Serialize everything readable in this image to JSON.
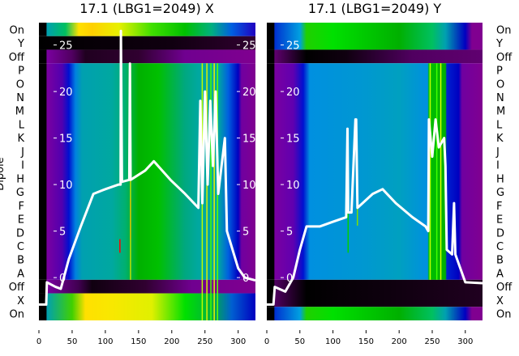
{
  "chart_data": [
    {
      "type": "heatmap",
      "title": "17.1 (LBG1=2049) X",
      "ylabel": "Dipole",
      "row_labels": [
        "On",
        "Y",
        "Off",
        "P",
        "O",
        "N",
        "M",
        "L",
        "K",
        "J",
        "I",
        "H",
        "G",
        "F",
        "E",
        "D",
        "C",
        "B",
        "A",
        "Off",
        "X",
        "On"
      ],
      "x_ticks": [
        0,
        50,
        100,
        150,
        200,
        250,
        300
      ],
      "xlim": [
        0,
        326
      ],
      "inner_y_ticks": [
        0,
        5,
        10,
        15,
        20,
        25
      ],
      "inner_ylim": [
        -4.6,
        27.4
      ],
      "bands": [
        {
          "rows": [
            0,
            0
          ],
          "stops": [
            [
              0,
              "#000000"
            ],
            [
              11,
              "#000000"
            ],
            [
              12,
              "#00a0b0"
            ],
            [
              40,
              "#00c060"
            ],
            [
              60,
              "#ffe000"
            ],
            [
              80,
              "#ffd000"
            ],
            [
              120,
              "#e8f000"
            ],
            [
              170,
              "#40e000"
            ],
            [
              220,
              "#00c000"
            ],
            [
              260,
              "#00b080"
            ],
            [
              290,
              "#0060e0"
            ],
            [
              326,
              "#2000c0"
            ]
          ]
        },
        {
          "rows": [
            1,
            1
          ],
          "stops": [
            [
              0,
              "#000000"
            ],
            [
              200,
              "#100010"
            ],
            [
              326,
              "#300030"
            ]
          ]
        },
        {
          "rows": [
            2,
            2
          ],
          "stops": [
            [
              0,
              "#000000"
            ],
            [
              11,
              "#000000"
            ],
            [
              12,
              "#7a00a0"
            ],
            [
              50,
              "#500060"
            ],
            [
              70,
              "#200020"
            ],
            [
              150,
              "#300030"
            ],
            [
              220,
              "#700090"
            ],
            [
              326,
              "#800090"
            ]
          ]
        },
        {
          "rows": [
            3,
            18
          ],
          "stops": [
            [
              0,
              "#000000"
            ],
            [
              11,
              "#000000"
            ],
            [
              12,
              "#7a00a0"
            ],
            [
              35,
              "#5000b0"
            ],
            [
              45,
              "#0010d0"
            ],
            [
              55,
              "#0080e0"
            ],
            [
              65,
              "#00a0b0"
            ],
            [
              110,
              "#00a8a0"
            ],
            [
              130,
              "#00b070"
            ],
            [
              150,
              "#00b000"
            ],
            [
              180,
              "#00c000"
            ],
            [
              220,
              "#00a880"
            ],
            [
              240,
              "#00a8a0"
            ],
            [
              270,
              "#00a8a0"
            ],
            [
              285,
              "#0060e0"
            ],
            [
              300,
              "#0000c0"
            ],
            [
              305,
              "#7000a0"
            ],
            [
              326,
              "#800090"
            ]
          ]
        },
        {
          "rows": [
            19,
            19
          ],
          "stops": [
            [
              0,
              "#000000"
            ],
            [
              11,
              "#000000"
            ],
            [
              12,
              "#7a00a0"
            ],
            [
              60,
              "#400050"
            ],
            [
              80,
              "#100010"
            ],
            [
              160,
              "#300030"
            ],
            [
              230,
              "#700090"
            ],
            [
              326,
              "#800090"
            ]
          ]
        },
        {
          "rows": [
            20,
            21
          ],
          "stops": [
            [
              0,
              "#000000"
            ],
            [
              11,
              "#000000"
            ],
            [
              12,
              "#00a0b0"
            ],
            [
              50,
              "#40d000"
            ],
            [
              70,
              "#ffe000"
            ],
            [
              110,
              "#f8e800"
            ],
            [
              170,
              "#e0f000"
            ],
            [
              220,
              "#00e000"
            ],
            [
              260,
              "#00b040"
            ],
            [
              290,
              "#0060d0"
            ],
            [
              326,
              "#0000c0"
            ]
          ]
        }
      ],
      "stripes": [
        {
          "x": 121,
          "rows": [
            16,
            16
          ],
          "color": "#ff0000"
        },
        {
          "x": 137,
          "rows": [
            13,
            15
          ],
          "color": "#ff2000"
        },
        {
          "x": 137,
          "rows": [
            3,
            18
          ],
          "color": "#c0e000"
        },
        {
          "x": 245,
          "rows": [
            3,
            21
          ],
          "color": "#c0ff00"
        },
        {
          "x": 252,
          "rows": [
            3,
            21
          ],
          "color": "#e0f000"
        },
        {
          "x": 258,
          "rows": [
            3,
            21
          ],
          "color": "#40ff00"
        },
        {
          "x": 263,
          "rows": [
            3,
            21
          ],
          "color": "#f0f000"
        },
        {
          "x": 268,
          "rows": [
            3,
            21
          ],
          "color": "#60ff00"
        }
      ],
      "series": [
        {
          "name": "profile",
          "color": "#ffffff",
          "x": [
            0,
            11,
            12,
            25,
            33,
            45,
            63,
            82,
            100,
            120,
            123,
            123.5,
            125,
            136,
            137,
            138,
            160,
            173,
            198,
            220,
            240,
            243,
            246,
            250,
            254,
            258,
            262,
            266,
            270,
            280,
            283,
            300,
            310,
            326
          ],
          "y": [
            -2.9,
            -2.9,
            -0.5,
            -1,
            -1.2,
            2,
            5.5,
            9,
            9.5,
            10,
            10,
            26.5,
            10.3,
            10.5,
            23,
            10.5,
            11.5,
            12.5,
            10.5,
            9,
            7.5,
            19,
            8,
            20,
            10,
            19,
            12,
            20,
            9,
            15,
            5,
            1,
            0,
            -0.3
          ]
        }
      ]
    },
    {
      "type": "heatmap",
      "title": "17.1 (LBG1=2049) Y",
      "row_labels": [
        "On",
        "Y",
        "Off",
        "P",
        "O",
        "N",
        "M",
        "L",
        "K",
        "J",
        "I",
        "H",
        "G",
        "F",
        "E",
        "D",
        "C",
        "B",
        "A",
        "Off",
        "X",
        "On"
      ],
      "x_ticks": [
        0,
        50,
        100,
        150,
        200,
        250,
        300
      ],
      "xlim": [
        0,
        326
      ],
      "inner_y_ticks": [
        0,
        5,
        10,
        15,
        20,
        25
      ],
      "inner_ylim": [
        -4.6,
        27.4
      ],
      "bands": [
        {
          "rows": [
            0,
            1
          ],
          "stops": [
            [
              0,
              "#000000"
            ],
            [
              11,
              "#000000"
            ],
            [
              12,
              "#0030d0"
            ],
            [
              50,
              "#00a0e0"
            ],
            [
              60,
              "#20d000"
            ],
            [
              100,
              "#00e000"
            ],
            [
              200,
              "#00b000"
            ],
            [
              250,
              "#00c060"
            ],
            [
              270,
              "#00a0b0"
            ],
            [
              300,
              "#0000c0"
            ],
            [
              310,
              "#800090"
            ],
            [
              326,
              "#800090"
            ]
          ]
        },
        {
          "rows": [
            2,
            2
          ],
          "stops": [
            [
              0,
              "#000000"
            ],
            [
              11,
              "#000000"
            ],
            [
              12,
              "#600070"
            ],
            [
              60,
              "#000000"
            ],
            [
              120,
              "#100010"
            ],
            [
              220,
              "#500060"
            ],
            [
              326,
              "#600070"
            ]
          ]
        },
        {
          "rows": [
            3,
            18
          ],
          "stops": [
            [
              0,
              "#000000"
            ],
            [
              11,
              "#000000"
            ],
            [
              12,
              "#7a00a0"
            ],
            [
              40,
              "#6000b0"
            ],
            [
              55,
              "#0010d0"
            ],
            [
              65,
              "#0090e0"
            ],
            [
              150,
              "#0098d0"
            ],
            [
              200,
              "#00a0c0"
            ],
            [
              243,
              "#0090e0"
            ],
            [
              245,
              "#00c000"
            ],
            [
              270,
              "#00b000"
            ],
            [
              272,
              "#0020d0"
            ],
            [
              290,
              "#0000c0"
            ],
            [
              295,
              "#7000a0"
            ],
            [
              326,
              "#800090"
            ]
          ]
        },
        {
          "rows": [
            19,
            20
          ],
          "stops": [
            [
              0,
              "#000000"
            ],
            [
              11,
              "#000000"
            ],
            [
              12,
              "#500060"
            ],
            [
              60,
              "#000000"
            ],
            [
              200,
              "#100010"
            ],
            [
              326,
              "#200020"
            ]
          ]
        },
        {
          "rows": [
            21,
            21
          ],
          "stops": [
            [
              0,
              "#000000"
            ],
            [
              11,
              "#000000"
            ],
            [
              12,
              "#0030d0"
            ],
            [
              50,
              "#00a0e0"
            ],
            [
              60,
              "#20d000"
            ],
            [
              100,
              "#00e000"
            ],
            [
              200,
              "#00b000"
            ],
            [
              250,
              "#00c060"
            ],
            [
              270,
              "#00a0b0"
            ],
            [
              300,
              "#0000c0"
            ],
            [
              310,
              "#800090"
            ],
            [
              326,
              "#800090"
            ]
          ]
        }
      ],
      "stripes": [
        {
          "x": 136,
          "rows": [
            11,
            14
          ],
          "color": "#80e000"
        },
        {
          "x": 122,
          "rows": [
            14,
            16
          ],
          "color": "#00d000"
        },
        {
          "x": 246,
          "rows": [
            3,
            18
          ],
          "color": "#c0ff00"
        },
        {
          "x": 256,
          "rows": [
            3,
            18
          ],
          "color": "#40ff00"
        },
        {
          "x": 262,
          "rows": [
            3,
            18
          ],
          "color": "#e0ff00"
        }
      ],
      "series": [
        {
          "name": "profile",
          "color": "#ffffff",
          "x": [
            0,
            10,
            12,
            28,
            40,
            50,
            60,
            80,
            100,
            120,
            122,
            123,
            128,
            134,
            135,
            137,
            160,
            175,
            195,
            220,
            240,
            244,
            245,
            250,
            255,
            260,
            268,
            270,
            272,
            280,
            283,
            285,
            300,
            326
          ],
          "y": [
            -2.9,
            -2.9,
            -1,
            -1.5,
            0,
            3,
            5.5,
            5.5,
            6,
            6.5,
            16,
            7,
            7,
            17,
            17,
            7.5,
            9,
            9.5,
            8,
            6.5,
            5.5,
            5,
            17,
            13,
            17,
            14,
            15,
            12,
            3,
            2.5,
            8,
            2.5,
            -0.5,
            -0.6
          ]
        }
      ]
    }
  ]
}
